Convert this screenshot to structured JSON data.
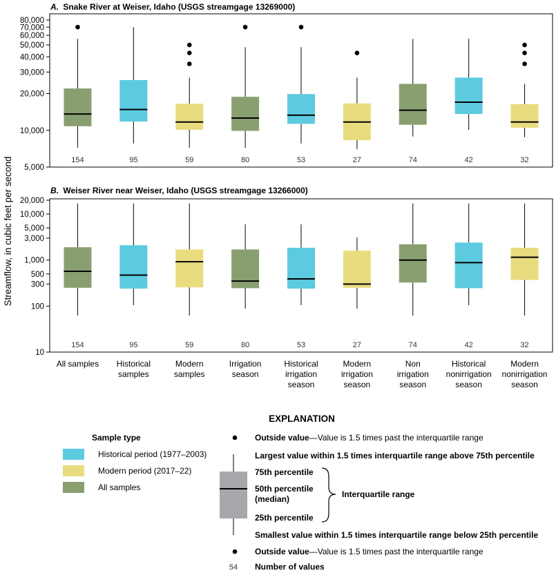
{
  "y_axis_label": "Streamflow, in cubic feet per second",
  "colors": {
    "historical": "#5ccbdf",
    "modern": "#e9dc7f",
    "all": "#8a9f70",
    "legend_box": "#a7a8ac",
    "median": "#000000"
  },
  "chart_data": [
    {
      "type": "box",
      "panel_letter": "A.",
      "title": "Snake River at Weiser, Idaho (USGS streamgage 13269000)",
      "scale": "log",
      "ylim": [
        5000,
        80000
      ],
      "ticks": [
        {
          "value": 5000,
          "label": "5,000"
        },
        {
          "value": 10000,
          "label": "10,000"
        },
        {
          "value": 20000,
          "label": "20,000"
        },
        {
          "value": 30000,
          "label": "30,000"
        },
        {
          "value": 40000,
          "label": "40,000"
        },
        {
          "value": 50000,
          "label": "50,000"
        },
        {
          "value": 60000,
          "label": "60,000"
        },
        {
          "value": 70000,
          "label": "70,000"
        },
        {
          "value": 80000,
          "label": "80,000"
        }
      ],
      "boxes": [
        {
          "type": "all",
          "whisker_low": 7200,
          "q1": 10800,
          "median": 13600,
          "q3": 22000,
          "whisker_high": 56000,
          "outliers": [
            70000
          ],
          "n": "154"
        },
        {
          "type": "historical",
          "whisker_low": 7800,
          "q1": 11800,
          "median": 14800,
          "q3": 25800,
          "whisker_high": 70000,
          "outliers": [],
          "n": "95"
        },
        {
          "type": "modern",
          "whisker_low": 7200,
          "q1": 10100,
          "median": 11700,
          "q3": 16500,
          "whisker_high": 27000,
          "outliers": [
            35000,
            43000,
            50000
          ],
          "n": "59"
        },
        {
          "type": "all",
          "whisker_low": 7200,
          "q1": 9900,
          "median": 12600,
          "q3": 18800,
          "whisker_high": 48000,
          "outliers": [
            70000
          ],
          "n": "80"
        },
        {
          "type": "historical",
          "whisker_low": 7800,
          "q1": 11300,
          "median": 13300,
          "q3": 19800,
          "whisker_high": 48000,
          "outliers": [
            70000
          ],
          "n": "53"
        },
        {
          "type": "modern",
          "whisker_low": 7000,
          "q1": 8300,
          "median": 11700,
          "q3": 16600,
          "whisker_high": 27000,
          "outliers": [
            43000
          ],
          "n": "27"
        },
        {
          "type": "all",
          "whisker_low": 8900,
          "q1": 11100,
          "median": 14600,
          "q3": 24000,
          "whisker_high": 56000,
          "outliers": [],
          "n": "74"
        },
        {
          "type": "historical",
          "whisker_low": 10100,
          "q1": 13600,
          "median": 17000,
          "q3": 27000,
          "whisker_high": 56000,
          "outliers": [],
          "n": "42"
        },
        {
          "type": "modern",
          "whisker_low": 8800,
          "q1": 10500,
          "median": 11700,
          "q3": 16400,
          "whisker_high": 24000,
          "outliers": [
            35000,
            43000,
            50000
          ],
          "n": "32"
        }
      ]
    },
    {
      "type": "box",
      "panel_letter": "B.",
      "title": "Weiser River near Weiser, Idaho (USGS streamgage 13266000)",
      "scale": "log",
      "ylim": [
        10,
        20000
      ],
      "ticks": [
        {
          "value": 10,
          "label": "10"
        },
        {
          "value": 100,
          "label": "100"
        },
        {
          "value": 300,
          "label": "300"
        },
        {
          "value": 500,
          "label": "500"
        },
        {
          "value": 1000,
          "label": "1,000"
        },
        {
          "value": 3000,
          "label": "3,000"
        },
        {
          "value": 5000,
          "label": "5,000"
        },
        {
          "value": 10000,
          "label": "10,000"
        },
        {
          "value": 20000,
          "label": "20,000"
        }
      ],
      "boxes": [
        {
          "type": "all",
          "whisker_low": 62,
          "q1": 250,
          "median": 570,
          "q3": 1900,
          "whisker_high": 17000,
          "outliers": [],
          "n": "154"
        },
        {
          "type": "historical",
          "whisker_low": 105,
          "q1": 240,
          "median": 470,
          "q3": 2100,
          "whisker_high": 17000,
          "outliers": [],
          "n": "95"
        },
        {
          "type": "modern",
          "whisker_low": 62,
          "q1": 255,
          "median": 920,
          "q3": 1700,
          "whisker_high": 17000,
          "outliers": [],
          "n": "59"
        },
        {
          "type": "all",
          "whisker_low": 88,
          "q1": 245,
          "median": 350,
          "q3": 1700,
          "whisker_high": 6000,
          "outliers": [],
          "n": "80"
        },
        {
          "type": "historical",
          "whisker_low": 105,
          "q1": 240,
          "median": 390,
          "q3": 1850,
          "whisker_high": 6000,
          "outliers": [],
          "n": "53"
        },
        {
          "type": "modern",
          "whisker_low": 88,
          "q1": 250,
          "median": 300,
          "q3": 1600,
          "whisker_high": 3100,
          "outliers": [],
          "n": "27"
        },
        {
          "type": "all",
          "whisker_low": 62,
          "q1": 325,
          "median": 1000,
          "q3": 2200,
          "whisker_high": 17000,
          "outliers": [],
          "n": "74"
        },
        {
          "type": "historical",
          "whisker_low": 105,
          "q1": 245,
          "median": 880,
          "q3": 2400,
          "whisker_high": 17000,
          "outliers": [],
          "n": "42"
        },
        {
          "type": "modern",
          "whisker_low": 62,
          "q1": 370,
          "median": 1150,
          "q3": 1850,
          "whisker_high": 17000,
          "outliers": [],
          "n": "32"
        }
      ]
    }
  ],
  "categories": [
    [
      "All samples"
    ],
    [
      "Historical",
      "samples"
    ],
    [
      "Modern",
      "samples"
    ],
    [
      "Irrigation",
      "season"
    ],
    [
      "Historical",
      "irrigation",
      "season"
    ],
    [
      "Modern",
      "irrigation",
      "season"
    ],
    [
      "Non",
      "irrigation",
      "season"
    ],
    [
      "Historical",
      "nonirrigation",
      "season"
    ],
    [
      "Modern",
      "nonirrigation",
      "season"
    ]
  ],
  "explanation": {
    "title": "EXPLANATION",
    "sample_type_title": "Sample type",
    "sample_types": [
      {
        "color_key": "historical",
        "label": "Historical period (1977–2003)"
      },
      {
        "color_key": "modern",
        "label": "Modern period (2017–22)"
      },
      {
        "color_key": "all",
        "label": "All samples"
      }
    ],
    "outside_bold": "Outside value",
    "outside_rest": "—Value is 1.5 times past the interquartile range",
    "largest": "Largest value within 1.5 times interquartile range above 75th percentile",
    "p75": "75th percentile",
    "p50_line1": "50th percentile",
    "p50_line2": "(median)",
    "p25": "25th percentile",
    "iqr": "Interquartile range",
    "smallest": "Smallest value within 1.5 times interquartile range below 25th percentile",
    "number_example": "54",
    "number_label": "Number of values"
  }
}
